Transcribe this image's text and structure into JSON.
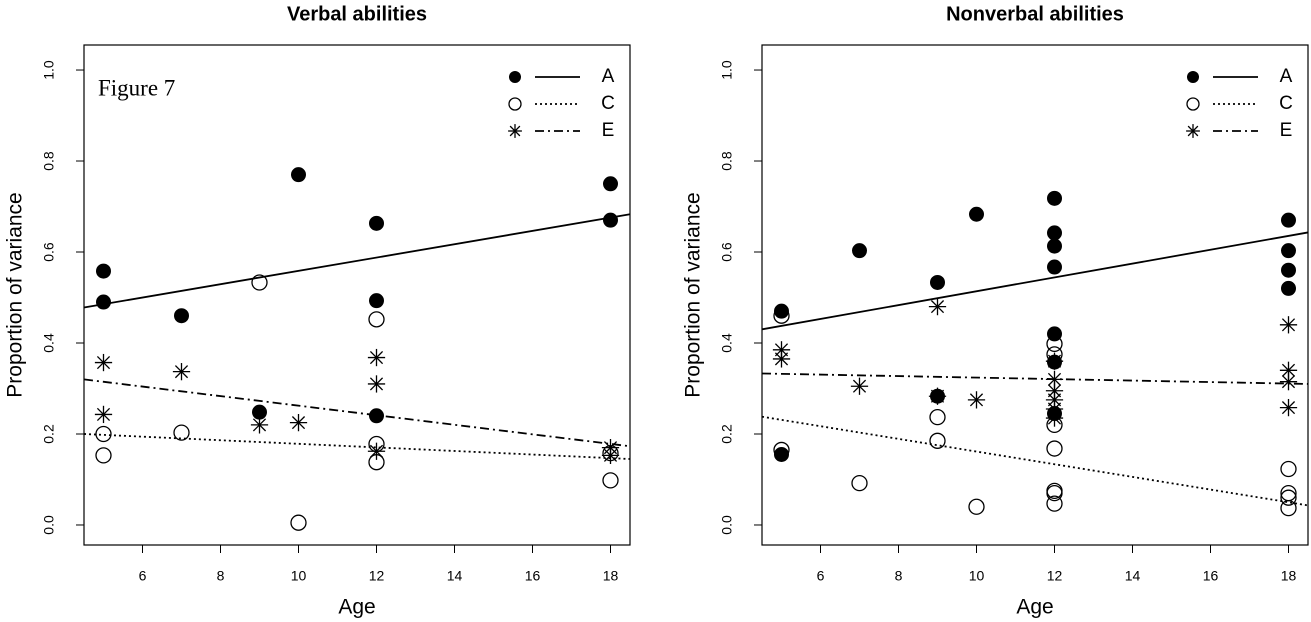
{
  "chart_data": [
    {
      "type": "scatter",
      "title": "Verbal abilities",
      "xlabel": "Age",
      "ylabel": "Proportion of variance",
      "annotation": "Figure 7",
      "xlim": [
        4.5,
        18.5
      ],
      "ylim": [
        -0.044,
        1.055
      ],
      "xticks": [
        6,
        8,
        10,
        12,
        14,
        16,
        18
      ],
      "yticks": [
        {
          "value": 0,
          "label": "0.0"
        },
        {
          "value": 0.2,
          "label": "0.2"
        },
        {
          "value": 0.4,
          "label": "0.4"
        },
        {
          "value": 0.6,
          "label": "0.6"
        },
        {
          "value": 0.8,
          "label": "0.8"
        },
        {
          "value": 1,
          "label": "1.0"
        }
      ],
      "legend": "upper right",
      "series": [
        {
          "name": "A",
          "color": "#000000",
          "marker": "filled",
          "linestyle": "solid",
          "x": [
            5,
            5,
            7,
            9,
            10,
            12,
            12,
            12,
            18,
            18
          ],
          "values": [
            0.558,
            0.49,
            0.46,
            0.248,
            0.77,
            0.663,
            0.493,
            0.24,
            0.75,
            0.67
          ],
          "fit": {
            "x": [
              4.5,
              18.5
            ],
            "values": [
              0.478,
              0.683
            ]
          }
        },
        {
          "name": "C",
          "color": "#000000",
          "marker": "open",
          "linestyle": "dotted",
          "x": [
            5,
            5,
            7,
            9,
            10,
            12,
            12,
            12,
            18,
            18
          ],
          "values": [
            0.2,
            0.153,
            0.203,
            0.533,
            0.005,
            0.452,
            0.178,
            0.138,
            0.158,
            0.098
          ],
          "fit": {
            "x": [
              4.5,
              18.5
            ],
            "values": [
              0.2,
              0.145
            ]
          }
        },
        {
          "name": "E",
          "color": "#000000",
          "marker": "star",
          "linestyle": "dashdot",
          "x": [
            5,
            5,
            7,
            9,
            10,
            12,
            12,
            12,
            18,
            18
          ],
          "values": [
            0.357,
            0.243,
            0.337,
            0.22,
            0.225,
            0.368,
            0.31,
            0.162,
            0.17,
            0.153
          ],
          "fit": {
            "x": [
              4.5,
              18.5
            ],
            "values": [
              0.32,
              0.173
            ]
          }
        }
      ]
    },
    {
      "type": "scatter",
      "title": "Nonverbal abilities",
      "xlabel": "Age",
      "ylabel": "Proportion of variance",
      "xlim": [
        4.5,
        18.5
      ],
      "ylim": [
        -0.044,
        1.055
      ],
      "xticks": [
        6,
        8,
        10,
        12,
        14,
        16,
        18
      ],
      "yticks": [
        {
          "value": 0,
          "label": "0.0"
        },
        {
          "value": 0.2,
          "label": "0.2"
        },
        {
          "value": 0.4,
          "label": "0.4"
        },
        {
          "value": 0.6,
          "label": "0.6"
        },
        {
          "value": 0.8,
          "label": "0.8"
        },
        {
          "value": 1,
          "label": "1.0"
        }
      ],
      "legend": "upper right",
      "series": [
        {
          "name": "A",
          "color": "#000000",
          "marker": "filled",
          "linestyle": "solid",
          "x": [
            5,
            5,
            7,
            9,
            9,
            10,
            12,
            12,
            12,
            12,
            12,
            12,
            12,
            18,
            18,
            18,
            18
          ],
          "values": [
            0.47,
            0.155,
            0.603,
            0.533,
            0.283,
            0.683,
            0.718,
            0.642,
            0.613,
            0.567,
            0.42,
            0.358,
            0.245,
            0.67,
            0.603,
            0.56,
            0.52
          ],
          "fit": {
            "x": [
              4.5,
              18.5
            ],
            "values": [
              0.43,
              0.643
            ]
          }
        },
        {
          "name": "C",
          "color": "#000000",
          "marker": "open",
          "linestyle": "dotted",
          "x": [
            5,
            5,
            7,
            9,
            9,
            10,
            12,
            12,
            12,
            12,
            12,
            12,
            12,
            18,
            18,
            18,
            18
          ],
          "values": [
            0.46,
            0.165,
            0.092,
            0.237,
            0.185,
            0.04,
            0.398,
            0.375,
            0.22,
            0.168,
            0.075,
            0.07,
            0.047,
            0.123,
            0.07,
            0.06,
            0.037
          ],
          "fit": {
            "x": [
              4.5,
              18.5
            ],
            "values": [
              0.238,
              0.043
            ]
          }
        },
        {
          "name": "E",
          "color": "#000000",
          "marker": "star",
          "linestyle": "dashdot",
          "x": [
            5,
            5,
            7,
            9,
            9,
            10,
            12,
            12,
            12,
            12,
            12,
            12,
            18,
            18,
            18,
            18
          ],
          "values": [
            0.385,
            0.365,
            0.305,
            0.48,
            0.283,
            0.275,
            0.36,
            0.32,
            0.295,
            0.275,
            0.255,
            0.235,
            0.44,
            0.34,
            0.315,
            0.258
          ],
          "fit": {
            "x": [
              4.5,
              18.5
            ],
            "values": [
              0.333,
              0.31
            ]
          }
        }
      ]
    }
  ]
}
